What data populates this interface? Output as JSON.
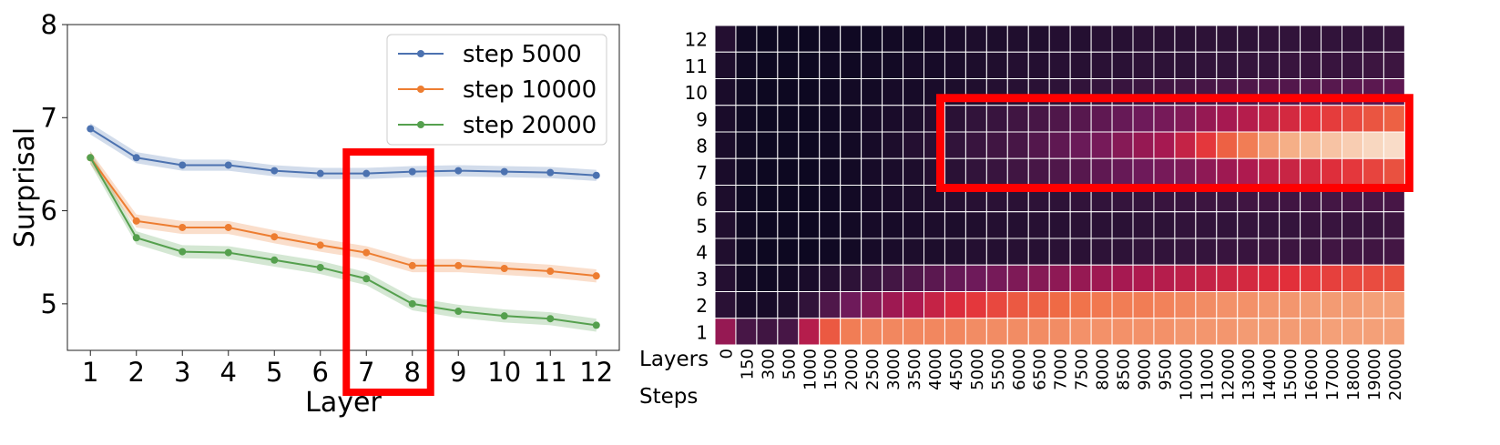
{
  "chart_data": [
    {
      "type": "line",
      "xlabel": "Layer",
      "ylabel": "Surprisal",
      "x": [
        1,
        2,
        3,
        4,
        5,
        6,
        7,
        8,
        9,
        10,
        11,
        12
      ],
      "x_tick_labels": [
        "1",
        "2",
        "3",
        "4",
        "5",
        "6",
        "7",
        "8",
        "9",
        "10",
        "11",
        "12"
      ],
      "y_ticks": [
        "5",
        "6",
        "7",
        "8"
      ],
      "ylim": [
        4.5,
        8.0
      ],
      "xlim": [
        0.5,
        12.5
      ],
      "grid": false,
      "legend_position": "top-right",
      "series": [
        {
          "name": "step 5000",
          "color": "#4c72b0",
          "values": [
            6.88,
            6.57,
            6.49,
            6.49,
            6.43,
            6.4,
            6.4,
            6.42,
            6.43,
            6.42,
            6.41,
            6.38
          ],
          "band": 0.06
        },
        {
          "name": "step 10000",
          "color": "#ed7d31",
          "values": [
            6.57,
            5.89,
            5.82,
            5.82,
            5.72,
            5.63,
            5.55,
            5.41,
            5.41,
            5.38,
            5.35,
            5.3
          ],
          "band": 0.07
        },
        {
          "name": "step 20000",
          "color": "#55a04e",
          "values": [
            6.57,
            5.71,
            5.56,
            5.55,
            5.47,
            5.39,
            5.27,
            5.0,
            4.92,
            4.87,
            4.84,
            4.77
          ],
          "band": 0.07
        }
      ],
      "highlight": {
        "from_layer": 7,
        "to_layer": 8,
        "color": "#ff0000"
      }
    },
    {
      "type": "heatmap",
      "row_axis_label": "Layers",
      "col_axis_label": "Steps",
      "rows": [
        "12",
        "11",
        "10",
        "9",
        "8",
        "7",
        "6",
        "5",
        "4",
        "3",
        "2",
        "1"
      ],
      "cols": [
        "0",
        "150",
        "300",
        "500",
        "1000",
        "1500",
        "2000",
        "2500",
        "3000",
        "3500",
        "4000",
        "4500",
        "5000",
        "5500",
        "6000",
        "6500",
        "7000",
        "7500",
        "8000",
        "8500",
        "9000",
        "9500",
        "10000",
        "11000",
        "12000",
        "13000",
        "14000",
        "15000",
        "16000",
        "17000",
        "18000",
        "19000",
        "20000"
      ],
      "values": [
        [
          0.1,
          0.04,
          0.03,
          0.03,
          0.03,
          0.04,
          0.04,
          0.04,
          0.05,
          0.05,
          0.06,
          0.07,
          0.08,
          0.08,
          0.09,
          0.09,
          0.1,
          0.1,
          0.11,
          0.11,
          0.12,
          0.12,
          0.12,
          0.13,
          0.13,
          0.13,
          0.14,
          0.14,
          0.14,
          0.14,
          0.14,
          0.14,
          0.15
        ],
        [
          0.08,
          0.04,
          0.03,
          0.03,
          0.03,
          0.04,
          0.04,
          0.05,
          0.05,
          0.06,
          0.06,
          0.07,
          0.08,
          0.09,
          0.1,
          0.1,
          0.11,
          0.11,
          0.12,
          0.12,
          0.13,
          0.13,
          0.13,
          0.14,
          0.14,
          0.15,
          0.15,
          0.16,
          0.16,
          0.16,
          0.16,
          0.17,
          0.17
        ],
        [
          0.07,
          0.04,
          0.03,
          0.03,
          0.03,
          0.04,
          0.05,
          0.05,
          0.06,
          0.06,
          0.07,
          0.08,
          0.09,
          0.1,
          0.11,
          0.12,
          0.13,
          0.14,
          0.15,
          0.16,
          0.17,
          0.18,
          0.19,
          0.2,
          0.21,
          0.22,
          0.23,
          0.23,
          0.24,
          0.24,
          0.25,
          0.25,
          0.26
        ],
        [
          0.07,
          0.04,
          0.03,
          0.03,
          0.03,
          0.04,
          0.05,
          0.06,
          0.07,
          0.08,
          0.1,
          0.12,
          0.14,
          0.16,
          0.18,
          0.2,
          0.22,
          0.24,
          0.26,
          0.28,
          0.3,
          0.32,
          0.35,
          0.4,
          0.44,
          0.48,
          0.52,
          0.56,
          0.6,
          0.63,
          0.66,
          0.69,
          0.72
        ],
        [
          0.07,
          0.04,
          0.03,
          0.03,
          0.03,
          0.04,
          0.05,
          0.06,
          0.08,
          0.1,
          0.12,
          0.14,
          0.16,
          0.18,
          0.2,
          0.23,
          0.26,
          0.29,
          0.32,
          0.36,
          0.4,
          0.44,
          0.52,
          0.62,
          0.72,
          0.78,
          0.84,
          0.88,
          0.9,
          0.92,
          0.94,
          0.96,
          0.97
        ],
        [
          0.07,
          0.04,
          0.03,
          0.03,
          0.03,
          0.04,
          0.05,
          0.06,
          0.07,
          0.08,
          0.1,
          0.12,
          0.14,
          0.16,
          0.18,
          0.2,
          0.22,
          0.24,
          0.26,
          0.28,
          0.3,
          0.32,
          0.34,
          0.38,
          0.42,
          0.46,
          0.5,
          0.53,
          0.56,
          0.59,
          0.62,
          0.65,
          0.68
        ],
        [
          0.08,
          0.04,
          0.03,
          0.03,
          0.03,
          0.04,
          0.05,
          0.06,
          0.07,
          0.08,
          0.09,
          0.1,
          0.11,
          0.12,
          0.12,
          0.13,
          0.13,
          0.14,
          0.14,
          0.15,
          0.15,
          0.16,
          0.16,
          0.17,
          0.17,
          0.18,
          0.18,
          0.18,
          0.19,
          0.19,
          0.2,
          0.2,
          0.2
        ],
        [
          0.09,
          0.04,
          0.03,
          0.03,
          0.03,
          0.04,
          0.05,
          0.06,
          0.06,
          0.07,
          0.08,
          0.08,
          0.09,
          0.1,
          0.1,
          0.11,
          0.11,
          0.12,
          0.12,
          0.12,
          0.13,
          0.13,
          0.14,
          0.14,
          0.14,
          0.15,
          0.15,
          0.15,
          0.16,
          0.16,
          0.16,
          0.16,
          0.17
        ],
        [
          0.09,
          0.04,
          0.03,
          0.03,
          0.03,
          0.04,
          0.05,
          0.06,
          0.07,
          0.08,
          0.08,
          0.09,
          0.1,
          0.1,
          0.11,
          0.11,
          0.12,
          0.12,
          0.13,
          0.13,
          0.14,
          0.14,
          0.15,
          0.15,
          0.16,
          0.16,
          0.17,
          0.17,
          0.17,
          0.18,
          0.18,
          0.18,
          0.19
        ],
        [
          0.1,
          0.05,
          0.04,
          0.05,
          0.07,
          0.1,
          0.13,
          0.16,
          0.19,
          0.22,
          0.25,
          0.28,
          0.3,
          0.32,
          0.34,
          0.36,
          0.38,
          0.4,
          0.42,
          0.44,
          0.46,
          0.48,
          0.5,
          0.52,
          0.54,
          0.56,
          0.58,
          0.6,
          0.62,
          0.64,
          0.66,
          0.67,
          0.68
        ],
        [
          0.12,
          0.06,
          0.06,
          0.08,
          0.14,
          0.22,
          0.3,
          0.36,
          0.42,
          0.46,
          0.52,
          0.58,
          0.62,
          0.66,
          0.7,
          0.72,
          0.74,
          0.76,
          0.77,
          0.78,
          0.78,
          0.79,
          0.8,
          0.81,
          0.82,
          0.82,
          0.83,
          0.83,
          0.84,
          0.84,
          0.84,
          0.85,
          0.85
        ],
        [
          0.4,
          0.2,
          0.18,
          0.2,
          0.48,
          0.7,
          0.78,
          0.8,
          0.8,
          0.8,
          0.8,
          0.8,
          0.81,
          0.81,
          0.81,
          0.81,
          0.81,
          0.82,
          0.82,
          0.82,
          0.82,
          0.82,
          0.83,
          0.83,
          0.83,
          0.84,
          0.84,
          0.84,
          0.84,
          0.85,
          0.85,
          0.85,
          0.85
        ]
      ],
      "highlight": {
        "row_from": "9",
        "row_to": "7",
        "col_from": "4500",
        "col_to": "20000",
        "color": "#ff0000"
      }
    }
  ]
}
